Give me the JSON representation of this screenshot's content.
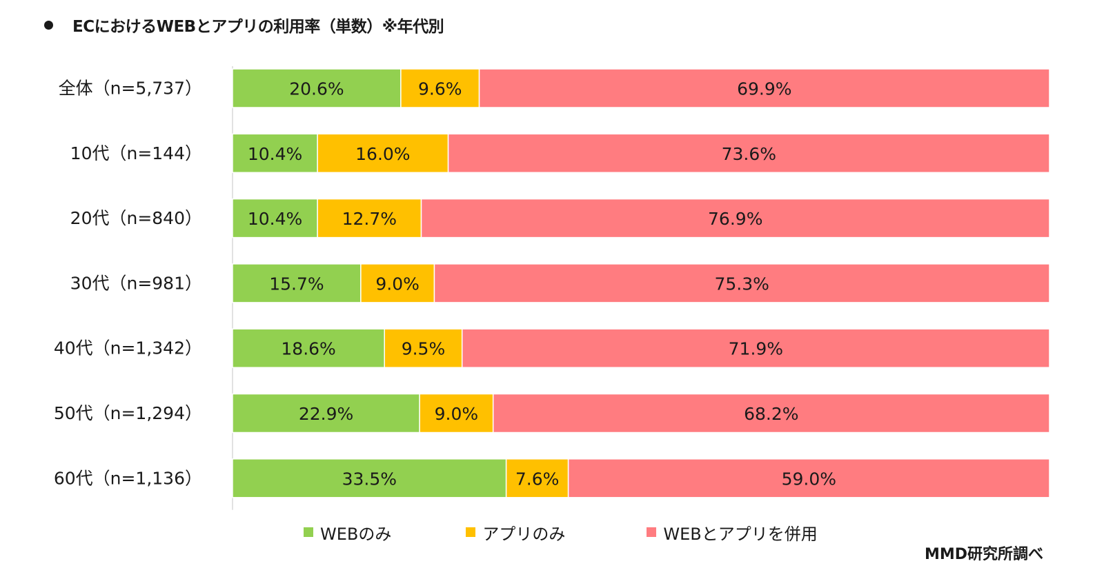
{
  "title": "ECにおけるWEBとアプリの利用率（単数）※年代別",
  "source": "MMD研究所調べ",
  "chart_data": {
    "type": "bar",
    "orientation": "horizontal",
    "stacked": true,
    "title": "ECにおけるWEBとアプリの利用率（単数）※年代別",
    "xlim": [
      0,
      100
    ],
    "unit": "%",
    "categories": [
      "全体（n=5,737）",
      "10代（n=144）",
      "20代（n=840）",
      "30代（n=981）",
      "40代（n=1,342）",
      "50代（n=1,294）",
      "60代（n=1,136）"
    ],
    "series": [
      {
        "name": "WEBのみ",
        "color": "#92D050",
        "values": [
          20.6,
          10.4,
          10.4,
          15.7,
          18.6,
          22.9,
          33.5
        ]
      },
      {
        "name": "アプリのみ",
        "color": "#FFC000",
        "values": [
          9.6,
          16.0,
          12.7,
          9.0,
          9.5,
          9.0,
          7.6
        ]
      },
      {
        "name": "WEBとアプリを併用",
        "color": "#FF7C80",
        "values": [
          69.9,
          73.6,
          76.9,
          75.3,
          71.9,
          68.2,
          59.0
        ]
      }
    ],
    "labels": [
      [
        "20.6%",
        "9.6%",
        "69.9%"
      ],
      [
        "10.4%",
        "16.0%",
        "73.6%"
      ],
      [
        "10.4%",
        "12.7%",
        "76.9%"
      ],
      [
        "15.7%",
        "9.0%",
        "75.3%"
      ],
      [
        "18.6%",
        "9.5%",
        "71.9%"
      ],
      [
        "22.9%",
        "9.0%",
        "68.2%"
      ],
      [
        "33.5%",
        "7.6%",
        "59.0%"
      ]
    ],
    "legend": "bottom"
  }
}
